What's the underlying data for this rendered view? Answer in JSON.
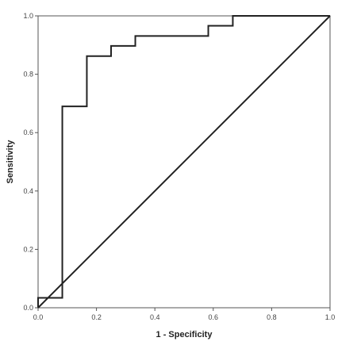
{
  "chart_data": {
    "type": "line",
    "title": "",
    "xlabel": "1 - Specificity",
    "ylabel": "Sensitivity",
    "xlim": [
      0.0,
      1.0
    ],
    "ylim": [
      0.0,
      1.0
    ],
    "x_ticks": [
      "0.0",
      "0.2",
      "0.4",
      "0.6",
      "0.8",
      "1.0"
    ],
    "y_ticks": [
      "0.0",
      "0.2",
      "0.4",
      "0.6",
      "0.8",
      "1.0"
    ],
    "grid": false,
    "legend": "none",
    "series": [
      {
        "style": "step",
        "color": "#222222",
        "x": [
          0.0,
          0.0,
          0.083,
          0.083,
          0.167,
          0.167,
          0.25,
          0.25,
          0.333,
          0.333,
          0.583,
          0.583,
          0.667,
          0.667,
          1.0
        ],
        "y": [
          0.0,
          0.034,
          0.034,
          0.69,
          0.69,
          0.862,
          0.862,
          0.897,
          0.897,
          0.931,
          0.931,
          0.966,
          0.966,
          1.0,
          1.0
        ]
      },
      {
        "style": "reference",
        "color": "#222222",
        "x": [
          0.0,
          1.0
        ],
        "y": [
          0.0,
          1.0
        ]
      }
    ]
  }
}
